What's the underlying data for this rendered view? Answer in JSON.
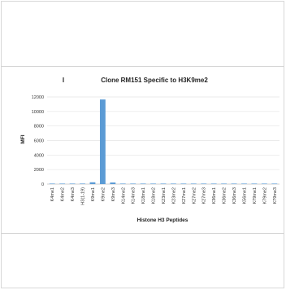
{
  "chart_data": {
    "type": "bar",
    "title": "Clone RM151 Specific to H3K9me2",
    "title_marker": "I",
    "xlabel": "Histone H3 Peptides",
    "ylabel": "MFI",
    "ylim": [
      0,
      12000
    ],
    "yticks": [
      0,
      2000,
      4000,
      6000,
      8000,
      10000,
      12000
    ],
    "grid": true,
    "legend": "none",
    "bar_color": "#5b9bd5",
    "categories": [
      "K4me1",
      "K4me2",
      "K4me3",
      "H3(1-19)",
      "K9me1",
      "K9me2",
      "K9me3",
      "K14me2",
      "K14me3",
      "K18me1",
      "K18me2",
      "K23me1",
      "K23me2",
      "K27me1",
      "K27me2",
      "K27me3",
      "K36me1",
      "K36me2",
      "K36me3",
      "K56me1",
      "K79me1",
      "K79me2",
      "K79me3"
    ],
    "values": [
      40,
      60,
      50,
      70,
      250,
      11650,
      220,
      40,
      30,
      40,
      30,
      30,
      30,
      30,
      30,
      30,
      40,
      30,
      30,
      30,
      40,
      40,
      40
    ]
  }
}
